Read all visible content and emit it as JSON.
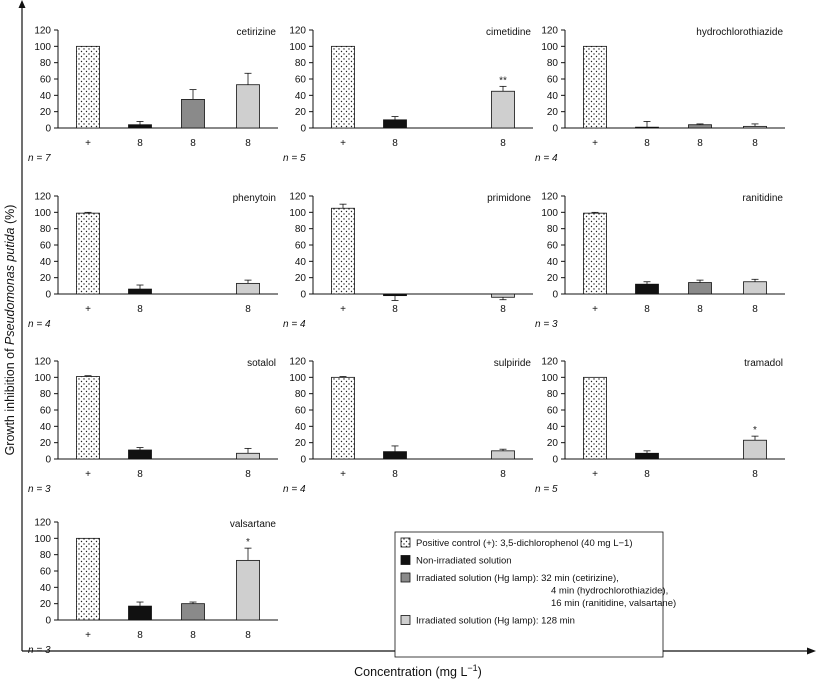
{
  "chart_data": {
    "type": "bar",
    "ylabel_prefix": "Growth inhibition of ",
    "ylabel_species": "Pseudomonas putida",
    "ylabel_suffix": " (%)",
    "xlabel_prefix": "Concentration (mg L",
    "xlabel_exp": "−1",
    "xlabel_suffix": ")",
    "ylim": [
      0,
      120
    ],
    "yticks": [
      0,
      20,
      40,
      60,
      80,
      100,
      120
    ],
    "series_styles": {
      "pos": {
        "fill": "#ffffff",
        "pattern": "dots"
      },
      "non": {
        "fill": "#111111"
      },
      "irrS": {
        "fill": "#8a8a8a"
      },
      "irrL": {
        "fill": "#cfcfcf"
      }
    },
    "legend": {
      "placement": "bottom-right",
      "entries": [
        {
          "series": "pos",
          "lines": [
            "Positive control (+): 3,5-dichlorophenol (40 mg L−1)"
          ]
        },
        {
          "series": "non",
          "lines": [
            "Non-irradiated solution"
          ]
        },
        {
          "series": "irrS",
          "lines": [
            "Irradiated solution (Hg lamp): 32 min (cetirizine),",
            "4 min (hydrochlorothiazide),",
            "16 min (ranitidine, valsartane)"
          ]
        },
        {
          "series": "irrL",
          "lines": [
            "Irradiated solution (Hg lamp): 128 min"
          ]
        }
      ]
    },
    "panels": [
      {
        "title": "cetirizine",
        "n": "n = 7",
        "bars": [
          {
            "series": "pos",
            "label": "+",
            "value": 100,
            "err": 0
          },
          {
            "series": "non",
            "label": "8",
            "value": 4,
            "err": 4
          },
          {
            "series": "irrS",
            "label": "8",
            "value": 35,
            "err": 12
          },
          {
            "series": "irrL",
            "label": "8",
            "value": 53,
            "err": 14
          }
        ]
      },
      {
        "title": "cimetidine",
        "n": "n = 5",
        "bars": [
          {
            "series": "pos",
            "label": "+",
            "value": 100,
            "err": 0
          },
          {
            "series": "non",
            "label": "8",
            "value": 10,
            "err": 4
          },
          {
            "series": "irrL",
            "label": "8",
            "value": 45,
            "err": 6,
            "mark": "**"
          }
        ]
      },
      {
        "title": "hydrochlorothiazide",
        "n": "n = 4",
        "bars": [
          {
            "series": "pos",
            "label": "+",
            "value": 100,
            "err": 0
          },
          {
            "series": "non",
            "label": "8",
            "value": 1,
            "err": 7
          },
          {
            "series": "irrS",
            "label": "8",
            "value": 4,
            "err": 1
          },
          {
            "series": "irrL",
            "label": "8",
            "value": 2,
            "err": 3
          }
        ]
      },
      {
        "title": "phenytoin",
        "n": "n = 4",
        "bars": [
          {
            "series": "pos",
            "label": "+",
            "value": 99,
            "err": 1
          },
          {
            "series": "non",
            "label": "8",
            "value": 6,
            "err": 5
          },
          {
            "series": "irrL",
            "label": "8",
            "value": 13,
            "err": 4
          }
        ]
      },
      {
        "title": "primidone",
        "n": "n = 4",
        "bars": [
          {
            "series": "pos",
            "label": "+",
            "value": 105,
            "err": 5
          },
          {
            "series": "non",
            "label": "8",
            "value": -2,
            "err": 6
          },
          {
            "series": "irrL",
            "label": "8",
            "value": -4,
            "err": 3
          }
        ]
      },
      {
        "title": "ranitidine",
        "n": "n = 3",
        "bars": [
          {
            "series": "pos",
            "label": "+",
            "value": 99,
            "err": 1
          },
          {
            "series": "non",
            "label": "8",
            "value": 12,
            "err": 3
          },
          {
            "series": "irrS",
            "label": "8",
            "value": 14,
            "err": 3
          },
          {
            "series": "irrL",
            "label": "8",
            "value": 15,
            "err": 3
          }
        ]
      },
      {
        "title": "sotalol",
        "n": "n = 3",
        "bars": [
          {
            "series": "pos",
            "label": "+",
            "value": 101,
            "err": 1
          },
          {
            "series": "non",
            "label": "8",
            "value": 11,
            "err": 3
          },
          {
            "series": "irrL",
            "label": "8",
            "value": 7,
            "err": 6
          }
        ]
      },
      {
        "title": "sulpiride",
        "n": "n = 4",
        "bars": [
          {
            "series": "pos",
            "label": "+",
            "value": 100,
            "err": 1
          },
          {
            "series": "non",
            "label": "8",
            "value": 9,
            "err": 7
          },
          {
            "series": "irrL",
            "label": "8",
            "value": 10,
            "err": 2
          }
        ]
      },
      {
        "title": "tramadol",
        "n": "n = 5",
        "bars": [
          {
            "series": "pos",
            "label": "+",
            "value": 100,
            "err": 0
          },
          {
            "series": "non",
            "label": "8",
            "value": 7,
            "err": 3
          },
          {
            "series": "irrL",
            "label": "8",
            "value": 23,
            "err": 5,
            "mark": "*"
          }
        ]
      },
      {
        "title": "valsartane",
        "n": "n = 3",
        "bars": [
          {
            "series": "pos",
            "label": "+",
            "value": 100,
            "err": 0
          },
          {
            "series": "non",
            "label": "8",
            "value": 17,
            "err": 5
          },
          {
            "series": "irrS",
            "label": "8",
            "value": 20,
            "err": 2
          },
          {
            "series": "irrL",
            "label": "8",
            "value": 73,
            "err": 15,
            "mark": "*"
          }
        ]
      }
    ]
  }
}
